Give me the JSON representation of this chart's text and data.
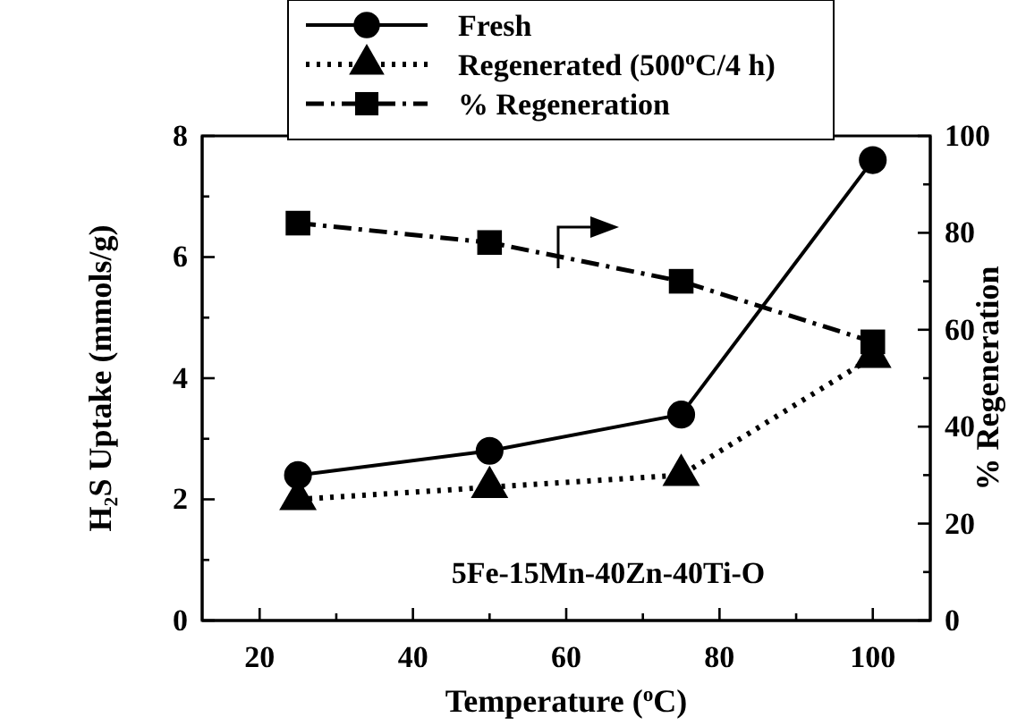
{
  "chart_data": {
    "type": "line",
    "xlabel": "Temperature ($^{o}$C)",
    "ylabel": "H₂S Uptake (mmols/g)",
    "y2label": "% Regeneration",
    "x": [
      25,
      50,
      75,
      100
    ],
    "series": [
      {
        "name": "Fresh",
        "color": "#000000",
        "values": [
          2.4,
          2.8,
          3.4,
          7.6
        ],
        "marker": "circle",
        "line_style": "solid"
      },
      {
        "name": "Regenerated (500$^{o}$C/4 h)",
        "color": "#000000",
        "values": [
          2.0,
          2.2,
          2.4,
          4.35
        ],
        "marker": "triangle",
        "line_style": "dotted"
      },
      {
        "name": "% Regeneration",
        "color": "#000000",
        "values": [
          82,
          78,
          70,
          57.5
        ],
        "marker": "square",
        "line_style": "dashdot",
        "axis": "y2"
      }
    ],
    "xlim": [
      12.5,
      107.5
    ],
    "xticks": [
      20,
      {
        "value": 30,
        "label": null
      },
      40,
      {
        "value": 50,
        "label": null
      },
      60,
      {
        "value": 70,
        "label": null
      },
      80,
      {
        "value": 90,
        "label": null
      },
      100
    ],
    "ylim": [
      0,
      8
    ],
    "yticks": [
      0,
      {
        "value": 1,
        "label": null
      },
      2,
      {
        "value": 3,
        "label": null
      },
      4,
      {
        "value": 5,
        "label": null
      },
      6,
      {
        "value": 7,
        "label": null
      },
      8
    ],
    "y2lim": [
      0,
      100
    ],
    "y2ticks": [
      0,
      {
        "value": 10,
        "label": null
      },
      20,
      {
        "value": 30,
        "label": null
      },
      40,
      {
        "value": 50,
        "label": null
      },
      60,
      {
        "value": 70,
        "label": null
      },
      80,
      {
        "value": 90,
        "label": null
      },
      100
    ],
    "annotations": [
      "5Fe-15Mn-40Zn-40Ti-O"
    ],
    "legend": "top",
    "grid": false
  }
}
